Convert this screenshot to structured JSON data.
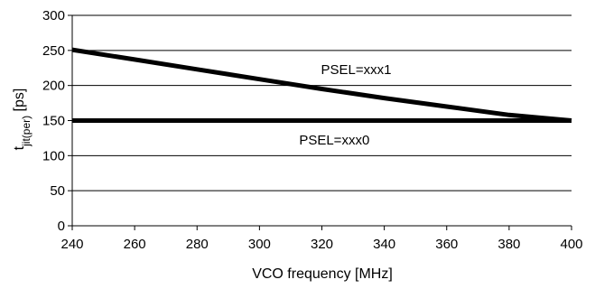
{
  "chart_data": {
    "type": "line",
    "xlabel": "VCO frequency [MHz]",
    "ylabel": {
      "main": "t",
      "subscript": "jit(per)",
      "unit": " [ps]"
    },
    "xlim": [
      240,
      400
    ],
    "ylim": [
      0,
      300
    ],
    "x_ticks": [
      240,
      260,
      280,
      300,
      320,
      340,
      360,
      380,
      400
    ],
    "y_ticks": [
      0,
      50,
      100,
      150,
      200,
      250,
      300
    ],
    "grid": "horizontal",
    "series": [
      {
        "name": "PSEL=xxx1",
        "x": [
          240,
          260,
          280,
          300,
          320,
          340,
          360,
          380,
          400
        ],
        "y": [
          251,
          237,
          223,
          209,
          195,
          182,
          170,
          158,
          150
        ]
      },
      {
        "name": "PSEL=xxx0",
        "x": [
          240,
          400
        ],
        "y": [
          150,
          150
        ]
      }
    ],
    "annotations": [
      {
        "text": "PSEL=xxx1",
        "x": 331,
        "y": 223
      },
      {
        "text": "PSEL=xxx0",
        "x": 324,
        "y": 122
      }
    ]
  }
}
